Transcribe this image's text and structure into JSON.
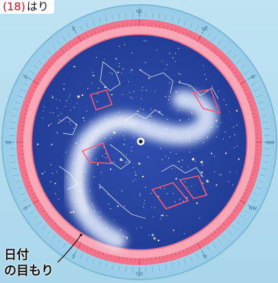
{
  "figure_label": {
    "number": "(18)",
    "suffix": "はり"
  },
  "outer_ring": {
    "direction_labels": [
      "NE",
      "NE",
      "N",
      "NW",
      "NW",
      "W",
      "SW",
      "S",
      "S",
      "SE",
      "E",
      "E"
    ],
    "colors": {
      "sky_light": "#bfe3f3",
      "ring_pink": "#f2738a",
      "ring_pink_light": "#f7a7b6",
      "disk_blue": "#24409a",
      "milky_way": "#e8f1ff"
    }
  },
  "date_pointer": {
    "line1": "日付",
    "line2": "の目もり"
  }
}
